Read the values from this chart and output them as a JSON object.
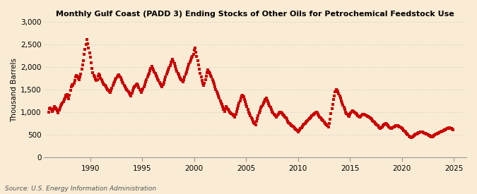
{
  "title": "Monthly Gulf Coast (PADD 3) Ending Stocks of Other Oils for Petrochemical Feedstock Use",
  "ylabel": "Thousand Barrels",
  "source": "Source: U.S. Energy Information Administration",
  "background_color": "#faecd4",
  "marker_color": "#cc0000",
  "grid_color": "#cccccc",
  "ylim": [
    0,
    3000
  ],
  "yticks": [
    0,
    500,
    1000,
    1500,
    2000,
    2500,
    3000
  ],
  "ytick_labels": [
    "0",
    "500",
    "1,000",
    "1,500",
    "2,000",
    "2,500",
    "3,000"
  ],
  "xlim_start": 1985.5,
  "xlim_end": 2026.2,
  "xtick_years": [
    1990,
    1995,
    2000,
    2005,
    2010,
    2015,
    2020,
    2025
  ],
  "data": [
    [
      1986.0,
      1000
    ],
    [
      1986.08,
      1080
    ],
    [
      1986.17,
      1100
    ],
    [
      1986.25,
      1060
    ],
    [
      1986.33,
      1020
    ],
    [
      1986.42,
      1050
    ],
    [
      1986.5,
      1080
    ],
    [
      1986.58,
      1120
    ],
    [
      1986.67,
      1100
    ],
    [
      1986.75,
      1060
    ],
    [
      1986.83,
      1030
    ],
    [
      1986.92,
      990
    ],
    [
      1987.0,
      1050
    ],
    [
      1987.08,
      1100
    ],
    [
      1987.17,
      1150
    ],
    [
      1987.25,
      1180
    ],
    [
      1987.33,
      1200
    ],
    [
      1987.42,
      1230
    ],
    [
      1987.5,
      1280
    ],
    [
      1987.58,
      1320
    ],
    [
      1987.67,
      1380
    ],
    [
      1987.75,
      1400
    ],
    [
      1987.83,
      1350
    ],
    [
      1987.92,
      1300
    ],
    [
      1988.0,
      1380
    ],
    [
      1988.08,
      1480
    ],
    [
      1988.17,
      1560
    ],
    [
      1988.25,
      1620
    ],
    [
      1988.33,
      1600
    ],
    [
      1988.42,
      1650
    ],
    [
      1988.5,
      1700
    ],
    [
      1988.58,
      1780
    ],
    [
      1988.67,
      1820
    ],
    [
      1988.75,
      1800
    ],
    [
      1988.83,
      1760
    ],
    [
      1988.92,
      1720
    ],
    [
      1989.0,
      1780
    ],
    [
      1989.08,
      1850
    ],
    [
      1989.17,
      1950
    ],
    [
      1989.25,
      2050
    ],
    [
      1989.33,
      2150
    ],
    [
      1989.42,
      2280
    ],
    [
      1989.5,
      2400
    ],
    [
      1989.58,
      2500
    ],
    [
      1989.67,
      2620
    ],
    [
      1989.75,
      2520
    ],
    [
      1989.83,
      2420
    ],
    [
      1989.92,
      2320
    ],
    [
      1990.0,
      2220
    ],
    [
      1990.08,
      2100
    ],
    [
      1990.17,
      1980
    ],
    [
      1990.25,
      1880
    ],
    [
      1990.33,
      1820
    ],
    [
      1990.42,
      1780
    ],
    [
      1990.5,
      1740
    ],
    [
      1990.58,
      1700
    ],
    [
      1990.67,
      1730
    ],
    [
      1990.75,
      1800
    ],
    [
      1990.83,
      1840
    ],
    [
      1990.92,
      1810
    ],
    [
      1991.0,
      1760
    ],
    [
      1991.08,
      1720
    ],
    [
      1991.17,
      1680
    ],
    [
      1991.25,
      1650
    ],
    [
      1991.33,
      1620
    ],
    [
      1991.42,
      1600
    ],
    [
      1991.5,
      1560
    ],
    [
      1991.58,
      1540
    ],
    [
      1991.67,
      1510
    ],
    [
      1991.75,
      1480
    ],
    [
      1991.83,
      1460
    ],
    [
      1991.92,
      1440
    ],
    [
      1992.0,
      1480
    ],
    [
      1992.08,
      1530
    ],
    [
      1992.17,
      1600
    ],
    [
      1992.25,
      1650
    ],
    [
      1992.33,
      1680
    ],
    [
      1992.42,
      1720
    ],
    [
      1992.5,
      1750
    ],
    [
      1992.58,
      1780
    ],
    [
      1992.67,
      1810
    ],
    [
      1992.75,
      1830
    ],
    [
      1992.83,
      1800
    ],
    [
      1992.92,
      1770
    ],
    [
      1993.0,
      1720
    ],
    [
      1993.08,
      1680
    ],
    [
      1993.17,
      1640
    ],
    [
      1993.25,
      1600
    ],
    [
      1993.33,
      1560
    ],
    [
      1993.42,
      1530
    ],
    [
      1993.5,
      1510
    ],
    [
      1993.58,
      1490
    ],
    [
      1993.67,
      1460
    ],
    [
      1993.75,
      1430
    ],
    [
      1993.83,
      1400
    ],
    [
      1993.92,
      1370
    ],
    [
      1994.0,
      1420
    ],
    [
      1994.08,
      1480
    ],
    [
      1994.17,
      1530
    ],
    [
      1994.25,
      1560
    ],
    [
      1994.33,
      1580
    ],
    [
      1994.42,
      1610
    ],
    [
      1994.5,
      1630
    ],
    [
      1994.58,
      1590
    ],
    [
      1994.67,
      1550
    ],
    [
      1994.75,
      1510
    ],
    [
      1994.83,
      1480
    ],
    [
      1994.92,
      1440
    ],
    [
      1995.0,
      1480
    ],
    [
      1995.08,
      1520
    ],
    [
      1995.17,
      1560
    ],
    [
      1995.25,
      1620
    ],
    [
      1995.33,
      1680
    ],
    [
      1995.42,
      1730
    ],
    [
      1995.5,
      1780
    ],
    [
      1995.58,
      1830
    ],
    [
      1995.67,
      1870
    ],
    [
      1995.75,
      1920
    ],
    [
      1995.83,
      1970
    ],
    [
      1995.92,
      2020
    ],
    [
      1996.0,
      1980
    ],
    [
      1996.08,
      1940
    ],
    [
      1996.17,
      1900
    ],
    [
      1996.25,
      1860
    ],
    [
      1996.33,
      1820
    ],
    [
      1996.42,
      1780
    ],
    [
      1996.5,
      1740
    ],
    [
      1996.58,
      1700
    ],
    [
      1996.67,
      1660
    ],
    [
      1996.75,
      1630
    ],
    [
      1996.83,
      1600
    ],
    [
      1996.92,
      1570
    ],
    [
      1997.0,
      1610
    ],
    [
      1997.08,
      1660
    ],
    [
      1997.17,
      1720
    ],
    [
      1997.25,
      1780
    ],
    [
      1997.33,
      1840
    ],
    [
      1997.42,
      1890
    ],
    [
      1997.5,
      1940
    ],
    [
      1997.58,
      1990
    ],
    [
      1997.67,
      2040
    ],
    [
      1997.75,
      2090
    ],
    [
      1997.83,
      2130
    ],
    [
      1997.92,
      2170
    ],
    [
      1998.0,
      2130
    ],
    [
      1998.08,
      2080
    ],
    [
      1998.17,
      2020
    ],
    [
      1998.25,
      1960
    ],
    [
      1998.33,
      1910
    ],
    [
      1998.42,
      1870
    ],
    [
      1998.5,
      1830
    ],
    [
      1998.58,
      1790
    ],
    [
      1998.67,
      1760
    ],
    [
      1998.75,
      1730
    ],
    [
      1998.83,
      1700
    ],
    [
      1998.92,
      1670
    ],
    [
      1999.0,
      1720
    ],
    [
      1999.08,
      1780
    ],
    [
      1999.17,
      1840
    ],
    [
      1999.25,
      1900
    ],
    [
      1999.33,
      1960
    ],
    [
      1999.42,
      2010
    ],
    [
      1999.5,
      2060
    ],
    [
      1999.58,
      2110
    ],
    [
      1999.67,
      2160
    ],
    [
      1999.75,
      2200
    ],
    [
      1999.83,
      2240
    ],
    [
      1999.92,
      2280
    ],
    [
      2000.0,
      2380
    ],
    [
      2000.08,
      2420
    ],
    [
      2000.17,
      2340
    ],
    [
      2000.25,
      2240
    ],
    [
      2000.33,
      2140
    ],
    [
      2000.42,
      2050
    ],
    [
      2000.5,
      1960
    ],
    [
      2000.58,
      1870
    ],
    [
      2000.67,
      1780
    ],
    [
      2000.75,
      1700
    ],
    [
      2000.83,
      1650
    ],
    [
      2000.92,
      1600
    ],
    [
      2001.0,
      1650
    ],
    [
      2001.08,
      1720
    ],
    [
      2001.17,
      1800
    ],
    [
      2001.25,
      1880
    ],
    [
      2001.33,
      1940
    ],
    [
      2001.42,
      1900
    ],
    [
      2001.5,
      1860
    ],
    [
      2001.58,
      1820
    ],
    [
      2001.67,
      1780
    ],
    [
      2001.75,
      1730
    ],
    [
      2001.83,
      1680
    ],
    [
      2001.92,
      1630
    ],
    [
      2002.0,
      1570
    ],
    [
      2002.08,
      1510
    ],
    [
      2002.17,
      1460
    ],
    [
      2002.25,
      1410
    ],
    [
      2002.33,
      1360
    ],
    [
      2002.42,
      1310
    ],
    [
      2002.5,
      1260
    ],
    [
      2002.58,
      1210
    ],
    [
      2002.67,
      1170
    ],
    [
      2002.75,
      1120
    ],
    [
      2002.83,
      1070
    ],
    [
      2002.92,
      1020
    ],
    [
      2003.0,
      1080
    ],
    [
      2003.08,
      1120
    ],
    [
      2003.17,
      1100
    ],
    [
      2003.25,
      1070
    ],
    [
      2003.33,
      1040
    ],
    [
      2003.42,
      1010
    ],
    [
      2003.5,
      990
    ],
    [
      2003.58,
      970
    ],
    [
      2003.67,
      955
    ],
    [
      2003.75,
      940
    ],
    [
      2003.83,
      920
    ],
    [
      2003.92,
      900
    ],
    [
      2004.0,
      960
    ],
    [
      2004.08,
      1020
    ],
    [
      2004.17,
      1080
    ],
    [
      2004.25,
      1140
    ],
    [
      2004.33,
      1200
    ],
    [
      2004.42,
      1260
    ],
    [
      2004.5,
      1310
    ],
    [
      2004.58,
      1360
    ],
    [
      2004.67,
      1380
    ],
    [
      2004.75,
      1340
    ],
    [
      2004.83,
      1290
    ],
    [
      2004.92,
      1240
    ],
    [
      2005.0,
      1180
    ],
    [
      2005.08,
      1120
    ],
    [
      2005.17,
      1060
    ],
    [
      2005.25,
      1010
    ],
    [
      2005.33,
      970
    ],
    [
      2005.42,
      930
    ],
    [
      2005.5,
      880
    ],
    [
      2005.58,
      840
    ],
    [
      2005.67,
      800
    ],
    [
      2005.75,
      770
    ],
    [
      2005.83,
      750
    ],
    [
      2005.92,
      720
    ],
    [
      2006.0,
      800
    ],
    [
      2006.08,
      860
    ],
    [
      2006.17,
      920
    ],
    [
      2006.25,
      980
    ],
    [
      2006.33,
      1040
    ],
    [
      2006.42,
      1090
    ],
    [
      2006.5,
      1130
    ],
    [
      2006.58,
      1160
    ],
    [
      2006.67,
      1200
    ],
    [
      2006.75,
      1240
    ],
    [
      2006.83,
      1280
    ],
    [
      2006.92,
      1310
    ],
    [
      2007.0,
      1270
    ],
    [
      2007.08,
      1230
    ],
    [
      2007.17,
      1190
    ],
    [
      2007.25,
      1150
    ],
    [
      2007.33,
      1110
    ],
    [
      2007.42,
      1060
    ],
    [
      2007.5,
      1020
    ],
    [
      2007.58,
      990
    ],
    [
      2007.67,
      960
    ],
    [
      2007.75,
      940
    ],
    [
      2007.83,
      920
    ],
    [
      2007.92,
      900
    ],
    [
      2008.0,
      930
    ],
    [
      2008.08,
      960
    ],
    [
      2008.17,
      990
    ],
    [
      2008.25,
      1010
    ],
    [
      2008.33,
      1000
    ],
    [
      2008.42,
      980
    ],
    [
      2008.5,
      960
    ],
    [
      2008.58,
      940
    ],
    [
      2008.67,
      920
    ],
    [
      2008.75,
      900
    ],
    [
      2008.83,
      870
    ],
    [
      2008.92,
      840
    ],
    [
      2009.0,
      800
    ],
    [
      2009.08,
      770
    ],
    [
      2009.17,
      750
    ],
    [
      2009.25,
      730
    ],
    [
      2009.33,
      710
    ],
    [
      2009.42,
      700
    ],
    [
      2009.5,
      690
    ],
    [
      2009.58,
      670
    ],
    [
      2009.67,
      650
    ],
    [
      2009.75,
      630
    ],
    [
      2009.83,
      615
    ],
    [
      2009.92,
      595
    ],
    [
      2010.0,
      570
    ],
    [
      2010.08,
      595
    ],
    [
      2010.17,
      615
    ],
    [
      2010.25,
      640
    ],
    [
      2010.33,
      665
    ],
    [
      2010.42,
      690
    ],
    [
      2010.5,
      715
    ],
    [
      2010.58,
      740
    ],
    [
      2010.67,
      760
    ],
    [
      2010.75,
      780
    ],
    [
      2010.83,
      800
    ],
    [
      2010.92,
      820
    ],
    [
      2011.0,
      840
    ],
    [
      2011.08,
      860
    ],
    [
      2011.17,
      880
    ],
    [
      2011.25,
      900
    ],
    [
      2011.33,
      920
    ],
    [
      2011.42,
      940
    ],
    [
      2011.5,
      960
    ],
    [
      2011.58,
      970
    ],
    [
      2011.67,
      980
    ],
    [
      2011.75,
      1000
    ],
    [
      2011.83,
      980
    ],
    [
      2011.92,
      960
    ],
    [
      2012.0,
      930
    ],
    [
      2012.08,
      900
    ],
    [
      2012.17,
      870
    ],
    [
      2012.25,
      850
    ],
    [
      2012.33,
      830
    ],
    [
      2012.42,
      810
    ],
    [
      2012.5,
      790
    ],
    [
      2012.58,
      760
    ],
    [
      2012.67,
      740
    ],
    [
      2012.75,
      720
    ],
    [
      2012.83,
      700
    ],
    [
      2012.92,
      680
    ],
    [
      2013.0,
      750
    ],
    [
      2013.08,
      850
    ],
    [
      2013.17,
      970
    ],
    [
      2013.25,
      1080
    ],
    [
      2013.33,
      1180
    ],
    [
      2013.42,
      1280
    ],
    [
      2013.5,
      1370
    ],
    [
      2013.58,
      1460
    ],
    [
      2013.67,
      1510
    ],
    [
      2013.75,
      1490
    ],
    [
      2013.83,
      1460
    ],
    [
      2013.92,
      1410
    ],
    [
      2014.0,
      1360
    ],
    [
      2014.08,
      1310
    ],
    [
      2014.17,
      1260
    ],
    [
      2014.25,
      1210
    ],
    [
      2014.33,
      1160
    ],
    [
      2014.42,
      1110
    ],
    [
      2014.5,
      1060
    ],
    [
      2014.58,
      1010
    ],
    [
      2014.67,
      975
    ],
    [
      2014.75,
      950
    ],
    [
      2014.83,
      930
    ],
    [
      2014.92,
      910
    ],
    [
      2015.0,
      950
    ],
    [
      2015.08,
      990
    ],
    [
      2015.17,
      1020
    ],
    [
      2015.25,
      1040
    ],
    [
      2015.33,
      1025
    ],
    [
      2015.42,
      1005
    ],
    [
      2015.5,
      985
    ],
    [
      2015.58,
      965
    ],
    [
      2015.67,
      950
    ],
    [
      2015.75,
      930
    ],
    [
      2015.83,
      910
    ],
    [
      2015.92,
      890
    ],
    [
      2016.0,
      910
    ],
    [
      2016.08,
      930
    ],
    [
      2016.17,
      950
    ],
    [
      2016.25,
      960
    ],
    [
      2016.33,
      955
    ],
    [
      2016.42,
      945
    ],
    [
      2016.5,
      935
    ],
    [
      2016.58,
      925
    ],
    [
      2016.67,
      915
    ],
    [
      2016.75,
      905
    ],
    [
      2016.83,
      895
    ],
    [
      2016.92,
      880
    ],
    [
      2017.0,
      860
    ],
    [
      2017.08,
      840
    ],
    [
      2017.17,
      820
    ],
    [
      2017.25,
      800
    ],
    [
      2017.33,
      780
    ],
    [
      2017.42,
      760
    ],
    [
      2017.5,
      740
    ],
    [
      2017.58,
      720
    ],
    [
      2017.67,
      700
    ],
    [
      2017.75,
      680
    ],
    [
      2017.83,
      660
    ],
    [
      2017.92,
      640
    ],
    [
      2018.0,
      660
    ],
    [
      2018.08,
      680
    ],
    [
      2018.17,
      700
    ],
    [
      2018.25,
      720
    ],
    [
      2018.33,
      740
    ],
    [
      2018.42,
      755
    ],
    [
      2018.5,
      740
    ],
    [
      2018.58,
      720
    ],
    [
      2018.67,
      700
    ],
    [
      2018.75,
      680
    ],
    [
      2018.83,
      660
    ],
    [
      2018.92,
      640
    ],
    [
      2019.0,
      650
    ],
    [
      2019.08,
      660
    ],
    [
      2019.17,
      670
    ],
    [
      2019.25,
      680
    ],
    [
      2019.33,
      690
    ],
    [
      2019.42,
      700
    ],
    [
      2019.5,
      710
    ],
    [
      2019.58,
      700
    ],
    [
      2019.67,
      690
    ],
    [
      2019.75,
      680
    ],
    [
      2019.83,
      670
    ],
    [
      2019.92,
      660
    ],
    [
      2020.0,
      640
    ],
    [
      2020.08,
      620
    ],
    [
      2020.17,
      600
    ],
    [
      2020.25,
      580
    ],
    [
      2020.33,
      560
    ],
    [
      2020.42,
      540
    ],
    [
      2020.5,
      515
    ],
    [
      2020.58,
      495
    ],
    [
      2020.67,
      475
    ],
    [
      2020.75,
      460
    ],
    [
      2020.83,
      450
    ],
    [
      2020.92,
      440
    ],
    [
      2021.0,
      455
    ],
    [
      2021.08,
      470
    ],
    [
      2021.17,
      485
    ],
    [
      2021.25,
      505
    ],
    [
      2021.33,
      515
    ],
    [
      2021.42,
      525
    ],
    [
      2021.5,
      535
    ],
    [
      2021.58,
      545
    ],
    [
      2021.67,
      555
    ],
    [
      2021.75,
      560
    ],
    [
      2021.83,
      565
    ],
    [
      2021.92,
      570
    ],
    [
      2022.0,
      560
    ],
    [
      2022.08,
      550
    ],
    [
      2022.17,
      540
    ],
    [
      2022.25,
      530
    ],
    [
      2022.33,
      520
    ],
    [
      2022.42,
      510
    ],
    [
      2022.5,
      500
    ],
    [
      2022.58,
      490
    ],
    [
      2022.67,
      480
    ],
    [
      2022.75,
      470
    ],
    [
      2022.83,
      460
    ],
    [
      2022.92,
      450
    ],
    [
      2023.0,
      465
    ],
    [
      2023.08,
      480
    ],
    [
      2023.17,
      495
    ],
    [
      2023.25,
      510
    ],
    [
      2023.33,
      520
    ],
    [
      2023.42,
      530
    ],
    [
      2023.5,
      540
    ],
    [
      2023.58,
      550
    ],
    [
      2023.67,
      560
    ],
    [
      2023.75,
      570
    ],
    [
      2023.83,
      575
    ],
    [
      2023.92,
      580
    ],
    [
      2024.0,
      590
    ],
    [
      2024.08,
      605
    ],
    [
      2024.17,
      615
    ],
    [
      2024.25,
      625
    ],
    [
      2024.33,
      635
    ],
    [
      2024.42,
      645
    ],
    [
      2024.5,
      655
    ],
    [
      2024.58,
      660
    ],
    [
      2024.67,
      650
    ],
    [
      2024.75,
      640
    ],
    [
      2024.83,
      625
    ],
    [
      2024.92,
      610
    ]
  ]
}
